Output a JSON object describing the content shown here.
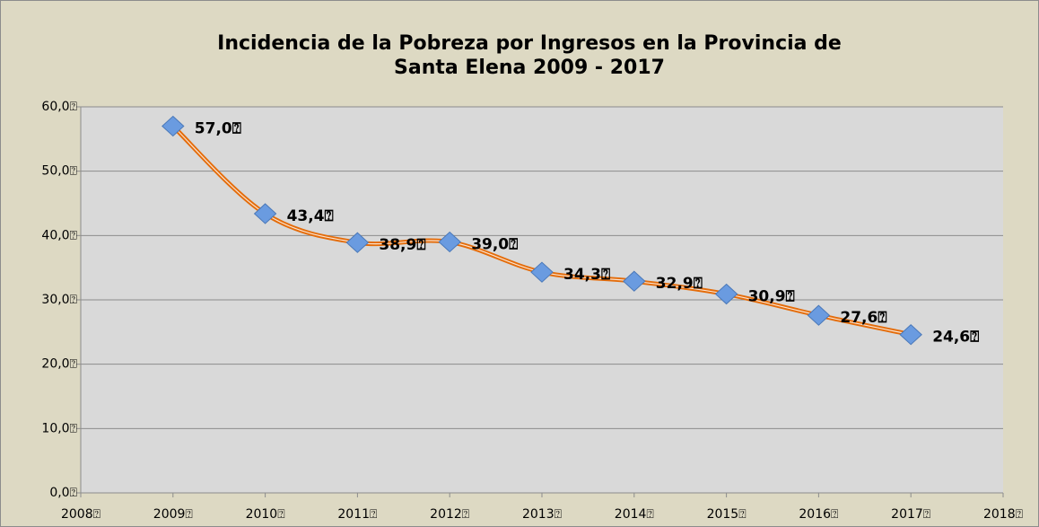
{
  "chart_data": {
    "type": "line",
    "title": [
      "Incidencia de la Pobreza por Ingresos en la Provincia de",
      "Santa Elena 2009 - 2017"
    ],
    "x": [
      2009,
      2010,
      2011,
      2012,
      2013,
      2014,
      2015,
      2016,
      2017
    ],
    "series": [
      {
        "color": "#e46c0a",
        "marker_color": "#6a9be0",
        "values": [
          57.0,
          43.4,
          38.9,
          39.0,
          34.3,
          32.9,
          30.9,
          27.6,
          24.6
        ],
        "value_labels": [
          "57,0⍰",
          "43,4⍰",
          "38,9⍰",
          "39,0⍰",
          "34,3⍰",
          "32,9⍰",
          "30,9⍰",
          "27,6⍰",
          "24,6⍰"
        ]
      }
    ],
    "xlim": [
      2008,
      2018
    ],
    "xticks": [
      {
        "value": 2008,
        "label": "2008⍰"
      },
      {
        "value": 2009,
        "label": "2009⍰"
      },
      {
        "value": 2010,
        "label": "2010⍰"
      },
      {
        "value": 2011,
        "label": "2011⍰"
      },
      {
        "value": 2012,
        "label": "2012⍰"
      },
      {
        "value": 2013,
        "label": "2013⍰"
      },
      {
        "value": 2014,
        "label": "2014⍰"
      },
      {
        "value": 2015,
        "label": "2015⍰"
      },
      {
        "value": 2016,
        "label": "2016⍰"
      },
      {
        "value": 2017,
        "label": "2017⍰"
      },
      {
        "value": 2018,
        "label": "2018⍰"
      }
    ],
    "ylim": [
      0,
      60
    ],
    "yticks": [
      {
        "value": 0,
        "label": "0,0⍰"
      },
      {
        "value": 10,
        "label": "10,0⍰"
      },
      {
        "value": 20,
        "label": "20,0⍰"
      },
      {
        "value": 30,
        "label": "30,0⍰"
      },
      {
        "value": 40,
        "label": "40,0⍰"
      },
      {
        "value": 50,
        "label": "50,0⍰"
      },
      {
        "value": 60,
        "label": "60,0⍰"
      }
    ],
    "grid": true
  }
}
